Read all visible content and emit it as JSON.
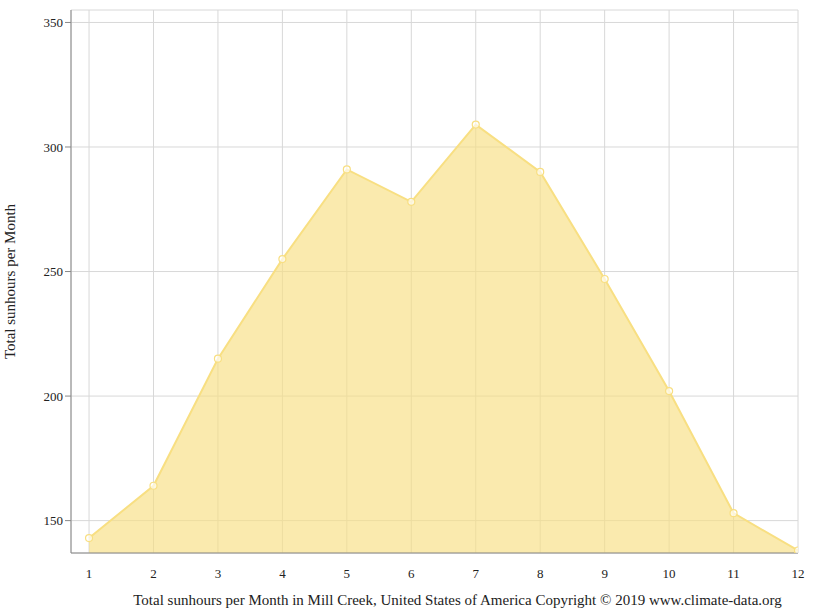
{
  "chart_data": {
    "type": "area",
    "x_label": "Total sunhours per Month in Mill Creek, United States of America Copyright © 2019 www.climate-data.org",
    "y_label": "Total sunhours per Month",
    "x": [
      1,
      2,
      3,
      4,
      5,
      6,
      7,
      8,
      9,
      10,
      11,
      12
    ],
    "values": [
      143,
      164,
      215,
      255,
      291,
      278,
      309,
      290,
      247,
      202,
      153,
      138
    ],
    "color": "#f8df82",
    "marker": "circle",
    "xlim": [
      0.72,
      12
    ],
    "xticks": [
      1,
      2,
      3,
      4,
      5,
      6,
      7,
      8,
      9,
      10,
      11,
      12
    ],
    "ylim": [
      137,
      355
    ],
    "yticks": [
      150,
      200,
      250,
      300,
      350
    ],
    "grid": true
  }
}
